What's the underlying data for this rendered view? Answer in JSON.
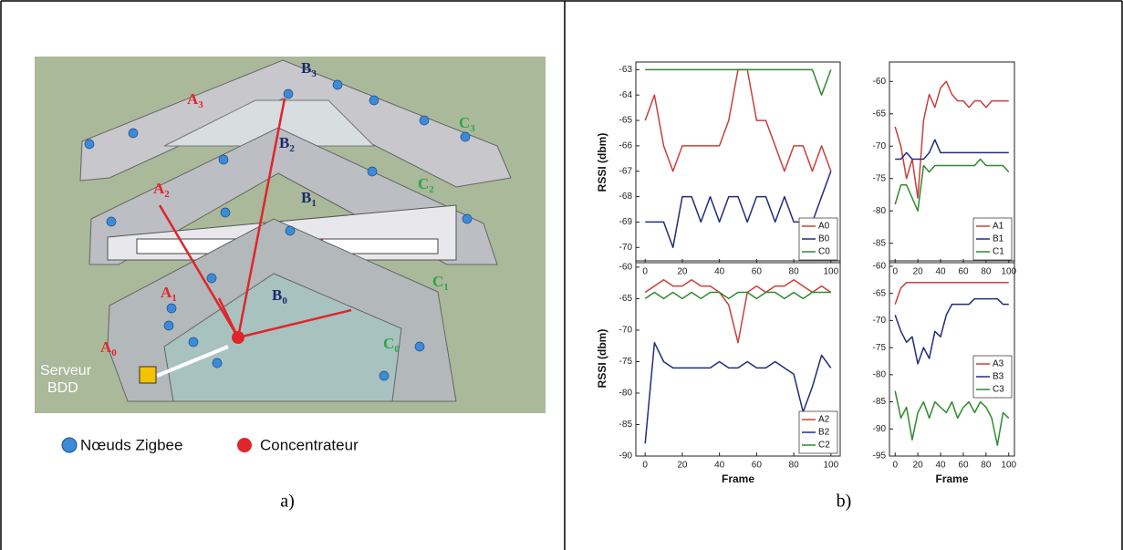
{
  "diagram": {
    "labels": [
      {
        "text": "A",
        "sub": "0",
        "color": "#e0252b"
      },
      {
        "text": "A",
        "sub": "1",
        "color": "#e0252b"
      },
      {
        "text": "A",
        "sub": "2",
        "color": "#e0252b"
      },
      {
        "text": "A",
        "sub": "3",
        "color": "#e0252b"
      },
      {
        "text": "B",
        "sub": "0",
        "color": "#1a2a6c"
      },
      {
        "text": "B",
        "sub": "1",
        "color": "#1a2a6c"
      },
      {
        "text": "B",
        "sub": "2",
        "color": "#1a2a6c"
      },
      {
        "text": "B",
        "sub": "3",
        "color": "#1a2a6c"
      },
      {
        "text": "C",
        "sub": "0",
        "color": "#2aa84a"
      },
      {
        "text": "C",
        "sub": "1",
        "color": "#2aa84a"
      },
      {
        "text": "C",
        "sub": "2",
        "color": "#2aa84a"
      },
      {
        "text": "C",
        "sub": "3",
        "color": "#2aa84a"
      }
    ],
    "server": [
      "Serveur",
      "BDD"
    ],
    "legend": [
      "Nœuds Zigbee",
      "Concentrateur"
    ]
  },
  "captions": [
    "a)",
    "b)"
  ],
  "chart_data": [
    {
      "type": "line",
      "ylabel": "RSSI (dbm)",
      "x": [
        0,
        5,
        10,
        15,
        20,
        25,
        30,
        35,
        40,
        45,
        50,
        55,
        60,
        65,
        70,
        75,
        80,
        85,
        90,
        95,
        100
      ],
      "xlim": [
        -5,
        105
      ],
      "xticks": [
        0,
        20,
        40,
        60,
        80,
        100
      ],
      "ylim": [
        -70.6,
        -62.7
      ],
      "yticks": [
        -63,
        -64,
        -65,
        -66,
        -67,
        -68,
        -69,
        -70
      ],
      "legend": "lower right",
      "series": [
        {
          "name": "A0",
          "color": "#c8403a",
          "values": [
            -65,
            -64,
            -66,
            -67,
            -66,
            -66,
            -66,
            -66,
            -66,
            -65,
            -63,
            -63,
            -65,
            -65,
            -66,
            -67,
            -66,
            -66,
            -67,
            -66,
            -67
          ]
        },
        {
          "name": "B0",
          "color": "#1f2e7a",
          "values": [
            -69,
            -69,
            -69,
            -70,
            -68,
            -68,
            -69,
            -68,
            -69,
            -68,
            -68,
            -69,
            -68,
            -68,
            -69,
            -68,
            -69,
            -69,
            -69,
            -68,
            -67
          ]
        },
        {
          "name": "C0",
          "color": "#2e8b2e",
          "values": [
            -63,
            -63,
            -63,
            -63,
            -63,
            -63,
            -63,
            -63,
            -63,
            -63,
            -63,
            -63,
            -63,
            -63,
            -63,
            -63,
            -63,
            -63,
            -63,
            -64,
            -63
          ]
        }
      ]
    },
    {
      "type": "line",
      "x": [
        0,
        5,
        10,
        15,
        20,
        25,
        30,
        35,
        40,
        45,
        50,
        55,
        60,
        65,
        70,
        75,
        80,
        85,
        90,
        95,
        100
      ],
      "xlim": [
        -5,
        105
      ],
      "xticks": [
        0,
        20,
        40,
        60,
        80,
        100
      ],
      "ylim": [
        -88,
        -57
      ],
      "yticks": [
        -60,
        -65,
        -70,
        -75,
        -80,
        -85
      ],
      "legend": "lower right",
      "series": [
        {
          "name": "A1",
          "color": "#c8403a",
          "values": [
            -67,
            -70,
            -75,
            -72,
            -78,
            -66,
            -62,
            -64,
            -61,
            -60,
            -62,
            -63,
            -63,
            -64,
            -63,
            -63,
            -64,
            -63,
            -63,
            -63,
            -63
          ]
        },
        {
          "name": "B1",
          "color": "#1f2e7a",
          "values": [
            -72,
            -72,
            -71,
            -72,
            -72,
            -72,
            -71,
            -69,
            -71,
            -71,
            -71,
            -71,
            -71,
            -71,
            -71,
            -71,
            -71,
            -71,
            -71,
            -71,
            -71
          ]
        },
        {
          "name": "C1",
          "color": "#2e8b2e",
          "values": [
            -79,
            -76,
            -76,
            -78,
            -80,
            -73,
            -74,
            -73,
            -73,
            -73,
            -73,
            -73,
            -73,
            -73,
            -73,
            -72,
            -73,
            -73,
            -73,
            -73,
            -74
          ]
        }
      ]
    },
    {
      "type": "line",
      "ylabel": "RSSI (dbm)",
      "xlabel": "Frame",
      "x": [
        0,
        5,
        10,
        15,
        20,
        25,
        30,
        35,
        40,
        45,
        50,
        55,
        60,
        65,
        70,
        75,
        80,
        85,
        90,
        95,
        100
      ],
      "xlim": [
        -5,
        105
      ],
      "xticks": [
        0,
        20,
        40,
        60,
        80,
        100
      ],
      "ylim": [
        -90,
        -59
      ],
      "yticks": [
        -60,
        -65,
        -70,
        -75,
        -80,
        -85,
        -90
      ],
      "legend": "lower right",
      "series": [
        {
          "name": "A2",
          "color": "#c8403a",
          "values": [
            -64,
            -63,
            -62,
            -63,
            -63,
            -62,
            -63,
            -63,
            -64,
            -66,
            -72,
            -64,
            -63,
            -64,
            -63,
            -63,
            -62,
            -63,
            -64,
            -63,
            -64
          ]
        },
        {
          "name": "B2",
          "color": "#1f2e7a",
          "values": [
            -88,
            -72,
            -75,
            -76,
            -76,
            -76,
            -76,
            -76,
            -75,
            -76,
            -76,
            -75,
            -76,
            -76,
            -75,
            -76,
            -77,
            -83,
            -79,
            -74,
            -76
          ]
        },
        {
          "name": "C2",
          "color": "#2e8b2e",
          "values": [
            -65,
            -64,
            -65,
            -64,
            -65,
            -64,
            -65,
            -64,
            -64,
            -65,
            -64,
            -64,
            -65,
            -64,
            -64,
            -65,
            -64,
            -65,
            -64,
            -64,
            -64
          ]
        }
      ]
    },
    {
      "type": "line",
      "xlabel": "Frame",
      "x": [
        0,
        5,
        10,
        15,
        20,
        25,
        30,
        35,
        40,
        45,
        50,
        55,
        60,
        65,
        70,
        75,
        80,
        85,
        90,
        95,
        100
      ],
      "xlim": [
        -5,
        105
      ],
      "xticks": [
        0,
        20,
        40,
        60,
        80,
        100
      ],
      "ylim": [
        -95,
        -59
      ],
      "yticks": [
        -60,
        -65,
        -70,
        -75,
        -80,
        -85,
        -90,
        -95
      ],
      "legend": "center right",
      "series": [
        {
          "name": "A3",
          "color": "#c8403a",
          "values": [
            -67,
            -64,
            -63,
            -63,
            -63,
            -63,
            -63,
            -63,
            -63,
            -63,
            -63,
            -63,
            -63,
            -63,
            -63,
            -63,
            -63,
            -63,
            -63,
            -63,
            -63
          ]
        },
        {
          "name": "B3",
          "color": "#1f2e7a",
          "values": [
            -69,
            -72,
            -74,
            -73,
            -78,
            -75,
            -77,
            -72,
            -73,
            -69,
            -67,
            -67,
            -67,
            -67,
            -66,
            -66,
            -66,
            -66,
            -66,
            -67,
            -67
          ]
        },
        {
          "name": "C3",
          "color": "#2e8b2e",
          "values": [
            -83,
            -88,
            -86,
            -92,
            -87,
            -85,
            -88,
            -85,
            -86,
            -87,
            -85,
            -88,
            -86,
            -85,
            -87,
            -85,
            -86,
            -88,
            -93,
            -87,
            -88
          ]
        }
      ]
    }
  ]
}
